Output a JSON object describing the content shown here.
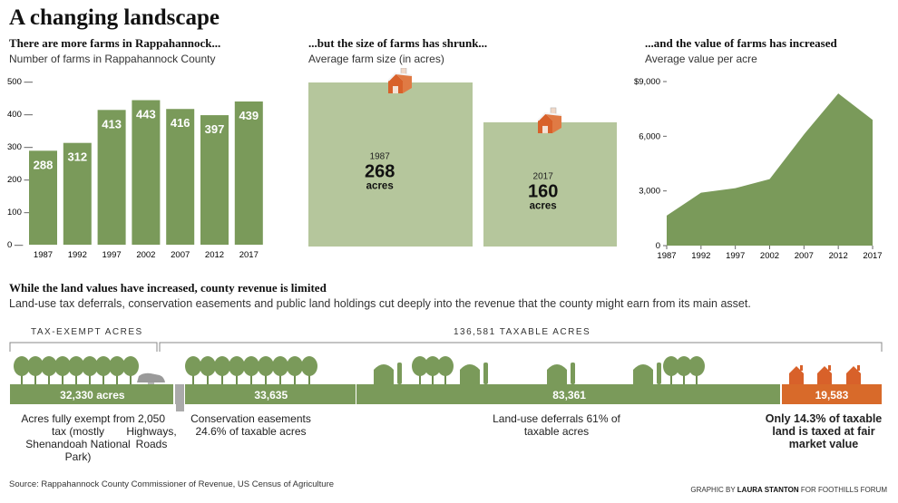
{
  "title": "A changing landscape",
  "chart_data": [
    {
      "type": "bar",
      "subtitle_bold": "There are more farms in Rappahannock...",
      "subtitle": "Number of farms in Rappahannock County",
      "categories": [
        "1987",
        "1992",
        "1997",
        "2002",
        "2007",
        "2012",
        "2017"
      ],
      "values": [
        288,
        312,
        413,
        443,
        416,
        397,
        439
      ],
      "data_labels": [
        "288",
        "312",
        "413",
        "443",
        "416",
        "397",
        "439"
      ],
      "yticks": [
        "500 —",
        "400 —",
        "300 —",
        "200 —",
        "100 —",
        "0 —"
      ],
      "ylim": [
        0,
        500
      ],
      "color": "#7a9a5a"
    },
    {
      "type": "area",
      "subtitle_bold": "...but the size of farms has shrunk...",
      "subtitle": "Average farm size (in acres)",
      "boxes": [
        {
          "year": "1987",
          "value": 268,
          "value_label": "268",
          "unit": "acres"
        },
        {
          "year": "2017",
          "value": 160,
          "value_label": "160",
          "unit": "acres"
        }
      ],
      "color": "#b5c69c"
    },
    {
      "type": "area",
      "subtitle_bold": "...and the value of farms has increased",
      "subtitle": "Average value per acre",
      "x": [
        "1987",
        "1992",
        "1997",
        "2002",
        "2007",
        "2012",
        "2017"
      ],
      "values": [
        1650,
        2900,
        3150,
        3650,
        6100,
        8350,
        6900
      ],
      "yticks": [
        "$9,000",
        "6,000",
        "3,000",
        "0"
      ],
      "ylim": [
        0,
        9000
      ],
      "color": "#7a9a5a"
    }
  ],
  "section2": {
    "heading": "While the land values have increased, county revenue is limited",
    "subheading": "Land-use tax deferrals, conservation easements and public land holdings cut deeply into the revenue that the county might earn from its main asset.",
    "tax_exempt_header": "TAX-EXEMPT ACRES",
    "taxable_header": "136,581 TAXABLE ACRES",
    "segments": [
      {
        "value": 32330,
        "label": "32,330 acres",
        "color": "#7a9a5a"
      },
      {
        "value": 2050,
        "label": "",
        "color": "#aaaaaa"
      },
      {
        "value": 33635,
        "label": "33,635",
        "color": "#7a9a5a"
      },
      {
        "value": 83361,
        "label": "83,361",
        "color": "#7a9a5a"
      },
      {
        "value": 19583,
        "label": "19,583",
        "color": "#d86a2a"
      }
    ],
    "captions": {
      "exempt": "Acres fully exempt from tax (mostly Shenandoah National Park)",
      "highways_value": "2,050",
      "highways": "Highways, Roads",
      "easements": "Conservation easements 24.6% of taxable acres",
      "deferrals": "Land-use deferrals 61% of taxable acres",
      "fair_market": "Only 14.3% of taxable land is taxed at fair market value"
    }
  },
  "source": "Source: Rappahannock County Commissioner of Revenue, US Census of Agriculture",
  "credit": {
    "prefix": "GRAPHIC BY ",
    "name": "LAURA STANTON",
    "suffix": " FOR FOOTHILLS FORUM"
  },
  "icons": {
    "barn": "barn-icon",
    "tree": "tree-icon",
    "silo": "silo-icon",
    "car": "car-icon",
    "house": "house-icon"
  }
}
